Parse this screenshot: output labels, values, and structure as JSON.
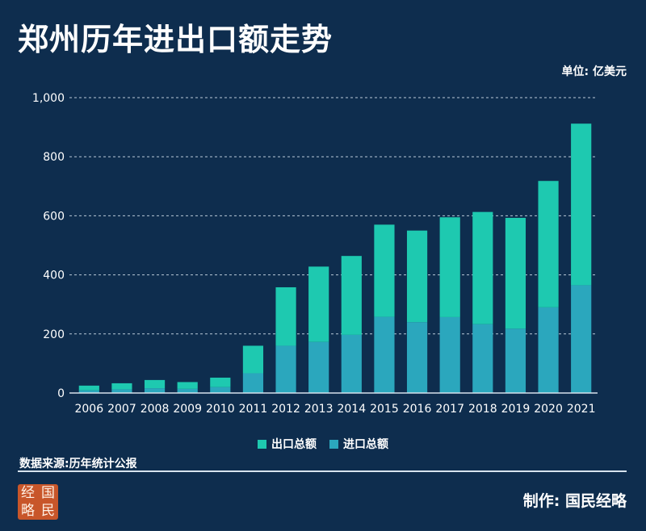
{
  "header": {
    "title": "郑州历年进出口额走势",
    "unit": "单位: 亿美元"
  },
  "chart_data": {
    "type": "bar",
    "stacked": true,
    "categories": [
      "2006",
      "2007",
      "2008",
      "2009",
      "2010",
      "2011",
      "2012",
      "2013",
      "2014",
      "2015",
      "2016",
      "2017",
      "2018",
      "2019",
      "2020",
      "2021"
    ],
    "series": [
      {
        "name": "进口总额",
        "values": [
          9,
          12,
          16,
          14,
          20,
          67,
          160,
          173,
          197,
          258,
          240,
          257,
          233,
          218,
          290,
          365
        ]
      },
      {
        "name": "出口总额",
        "values": [
          16,
          21,
          28,
          23,
          32,
          93,
          198,
          255,
          267,
          312,
          310,
          338,
          380,
          375,
          428,
          547
        ]
      }
    ],
    "title": "郑州历年进出口额走势",
    "xlabel": "",
    "ylabel": "亿美元",
    "ylim": [
      0,
      1000
    ],
    "yticks": [
      0,
      200,
      400,
      600,
      800,
      1000
    ],
    "ytick_labels": [
      "0",
      "200",
      "400",
      "600",
      "800",
      "1,000"
    ],
    "grid": true,
    "legend": "bottom-center",
    "colors": {
      "export": "#1ec9b0",
      "import": "#2ba7bd"
    }
  },
  "legend": {
    "export_label": "出口总额",
    "import_label": "进口总额"
  },
  "footer": {
    "source": "数据来源:历年统计公报",
    "credit": "制作: 国民经略",
    "logo_chars": [
      "经",
      "国",
      "略",
      "民"
    ]
  }
}
